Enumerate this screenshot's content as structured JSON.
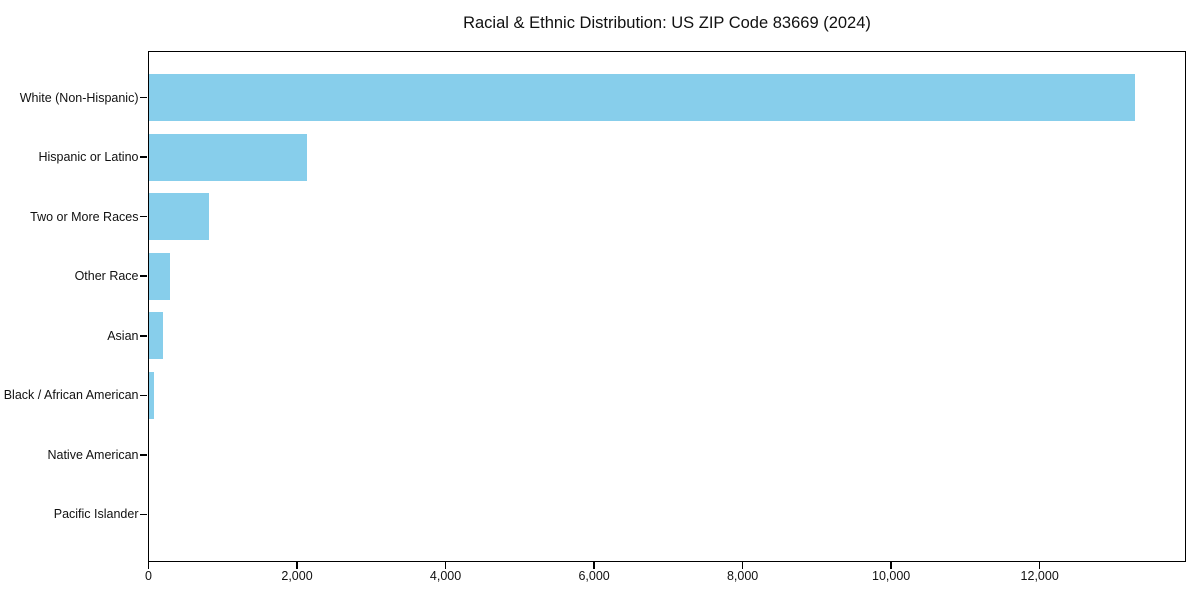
{
  "chart_data": {
    "type": "bar",
    "orientation": "horizontal",
    "title": "Racial & Ethnic Distribution: US ZIP Code 83669 (2024)",
    "xlabel": "",
    "ylabel": "",
    "categories": [
      "White (Non-Hispanic)",
      "Hispanic or Latino",
      "Two or More Races",
      "Other Race",
      "Asian",
      "Black / African American",
      "Native American",
      "Pacific Islander"
    ],
    "values": [
      13290,
      2140,
      820,
      285,
      190,
      75,
      0,
      0
    ],
    "xlim": [
      0,
      13950
    ],
    "xticks": [
      0,
      2000,
      4000,
      6000,
      8000,
      10000,
      12000
    ],
    "xtick_labels": [
      "0",
      "2,000",
      "4,000",
      "6,000",
      "8,000",
      "10,000",
      "12,000"
    ],
    "grid": false,
    "legend": null,
    "bar_color": "#87CEEB"
  },
  "colors": {
    "bar": "#87CEEB",
    "spine": "#000000",
    "text": "#111111",
    "background": "#ffffff"
  }
}
